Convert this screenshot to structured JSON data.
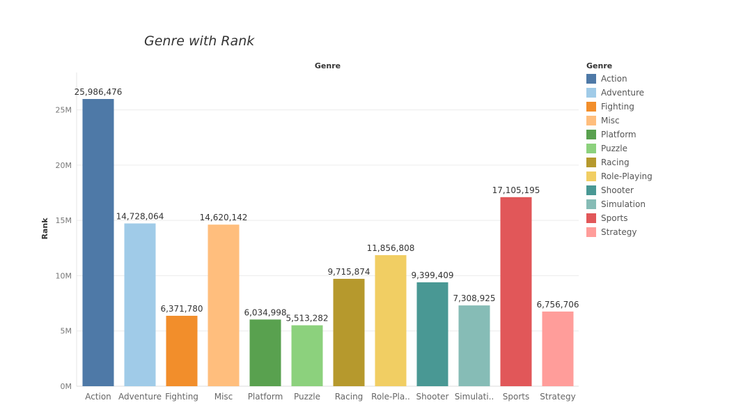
{
  "chart_data": {
    "type": "bar",
    "title": "Genre with Rank",
    "column_header": "Genre",
    "ylabel": "Rank",
    "xlabel": "",
    "ylim": [
      0,
      26000000
    ],
    "yticks": [
      {
        "value": 0,
        "label": "0M"
      },
      {
        "value": 5000000,
        "label": "5M"
      },
      {
        "value": 10000000,
        "label": "10M"
      },
      {
        "value": 15000000,
        "label": "15M"
      },
      {
        "value": 20000000,
        "label": "20M"
      },
      {
        "value": 25000000,
        "label": "25M"
      }
    ],
    "grid": "horizontal",
    "legend_position": "right",
    "legend_title": "Genre",
    "categories": [
      "Action",
      "Adventure",
      "Fighting",
      "Misc",
      "Platform",
      "Puzzle",
      "Racing",
      "Role-Playing",
      "Shooter",
      "Simulation",
      "Sports",
      "Strategy"
    ],
    "tick_labels": [
      "Action",
      "Adventure",
      "Fighting",
      "Misc",
      "Platform",
      "Puzzle",
      "Racing",
      "Role-Pla..",
      "Shooter",
      "Simulati..",
      "Sports",
      "Strategy"
    ],
    "values": [
      25986476,
      14728064,
      6371780,
      14620142,
      6034998,
      5513282,
      9715874,
      11856808,
      9399409,
      7308925,
      17105195,
      6756706
    ],
    "value_labels": [
      "25,986,476",
      "14,728,064",
      "6,371,780",
      "14,620,142",
      "6,034,998",
      "5,513,282",
      "9,715,874",
      "11,856,808",
      "9,399,409",
      "7,308,925",
      "17,105,195",
      "6,756,706"
    ],
    "colors": [
      "#4e79a7",
      "#a0cbe8",
      "#f28e2b",
      "#ffbe7d",
      "#59a14f",
      "#8cd17d",
      "#b6992d",
      "#f1ce63",
      "#499894",
      "#86bcb6",
      "#e15759",
      "#ff9d9a"
    ]
  }
}
